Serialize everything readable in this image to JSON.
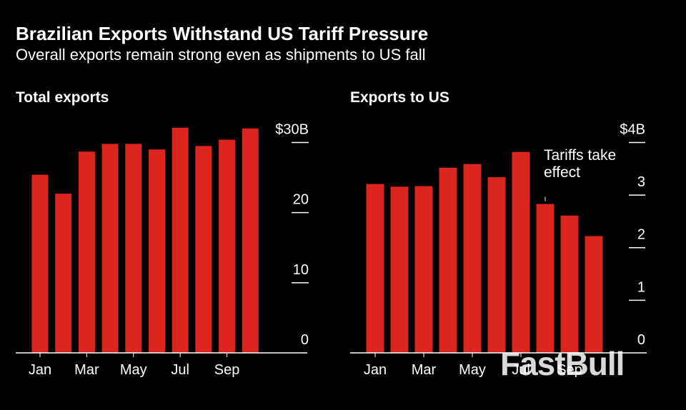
{
  "header": {
    "title": "Brazilian Exports Withstand US Tariff Pressure",
    "subtitle": "Overall exports remain strong even as shipments to US fall"
  },
  "watermark": "FastBull",
  "chart_data": [
    {
      "type": "bar",
      "title": "Total exports",
      "categories": [
        "Jan",
        null,
        "Mar",
        null,
        "May",
        null,
        "Jul",
        null,
        "Sep",
        null
      ],
      "values": [
        25.4,
        22.7,
        28.7,
        29.8,
        29.8,
        29.0,
        32.1,
        29.5,
        30.4,
        32.0
      ],
      "color": "#dd2520",
      "ylim": [
        0,
        33
      ],
      "yticks": [
        0,
        10,
        20,
        {
          "value": 30,
          "label": "$30B"
        }
      ]
    },
    {
      "type": "bar",
      "title": "Exports to US",
      "categories": [
        "Jan",
        null,
        "Mar",
        null,
        "May",
        null,
        "Jul",
        null,
        "Sep",
        null
      ],
      "values": [
        3.21,
        3.16,
        3.17,
        3.52,
        3.59,
        3.34,
        3.82,
        2.83,
        2.61,
        2.22
      ],
      "color": "#dd2520",
      "ylim": [
        0,
        4.4
      ],
      "yticks": [
        0,
        1,
        2,
        3,
        {
          "value": 4,
          "label": "$4B"
        }
      ],
      "annotation": {
        "text": "Tariffs take effect",
        "category": 7
      }
    }
  ]
}
